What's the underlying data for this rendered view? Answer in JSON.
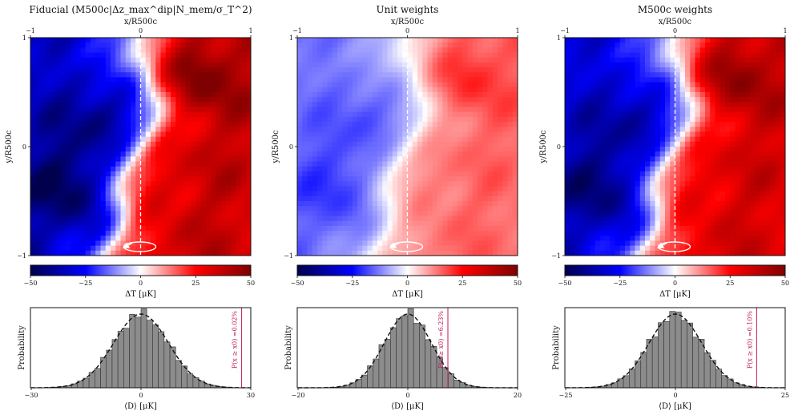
{
  "chart_data": [
    {
      "type": "heatmap",
      "title": "Fiducial (M500c|Δz_max^dip|N_mem/σ_T^2)",
      "xlabel": "x/R500c",
      "ylabel": "y/R500c",
      "xlim": [
        -1,
        1
      ],
      "ylim": [
        -1,
        1
      ],
      "xticks": [
        "−1",
        "0",
        "1"
      ],
      "yticks": [
        "1",
        "0",
        "−1"
      ],
      "colorbar": {
        "label": "ΔT [μK]",
        "range": [
          -50,
          50
        ],
        "ticks": [
          "−50",
          "−25",
          "0",
          "25",
          "50"
        ]
      },
      "amplitude": 1.0,
      "histogram": {
        "xlabel": "⟨D⟩ [μK]",
        "ylabel": "Probability",
        "xlim": [
          -30,
          30
        ],
        "xticks": [
          "−30",
          "0",
          "30"
        ],
        "sigma": 7.5,
        "observed": 27.5,
        "annotation": "P(x ≥ x0) =0.02%"
      }
    },
    {
      "type": "heatmap",
      "title": "Unit weights",
      "xlabel": "x/R500c",
      "ylabel": "y/R500c",
      "xlim": [
        -1,
        1
      ],
      "ylim": [
        -1,
        1
      ],
      "xticks": [
        "−1",
        "0",
        "1"
      ],
      "yticks": [
        "1",
        "0",
        "−1"
      ],
      "colorbar": {
        "label": "ΔT [μK]",
        "range": [
          -50,
          50
        ],
        "ticks": [
          "−50",
          "−25",
          "0",
          "25",
          "50"
        ]
      },
      "amplitude": 0.42,
      "histogram": {
        "xlabel": "⟨D⟩ [μK]",
        "ylabel": "Probability",
        "xlim": [
          -20,
          20
        ],
        "xticks": [
          "−20",
          "0",
          "20"
        ],
        "sigma": 4.3,
        "observed": 7.3,
        "annotation": "P(x ≥ x0) =6.23%"
      }
    },
    {
      "type": "heatmap",
      "title": "M500c weights",
      "xlabel": "x/R500c",
      "ylabel": "y/R500c",
      "xlim": [
        -1,
        1
      ],
      "ylim": [
        -1,
        1
      ],
      "xticks": [
        "−1",
        "0",
        "1"
      ],
      "yticks": [
        "1",
        "0",
        "−1"
      ],
      "colorbar": {
        "label": "ΔT [μK]",
        "range": [
          -50,
          50
        ],
        "ticks": [
          "−50",
          "−25",
          "0",
          "25",
          "50"
        ]
      },
      "amplitude": 0.92,
      "histogram": {
        "xlabel": "⟨D⟩ [μK]",
        "ylabel": "Probability",
        "xlim": [
          -25,
          25
        ],
        "xticks": [
          "−25",
          "0",
          "25"
        ],
        "sigma": 6.0,
        "observed": 18.5,
        "annotation": "P(x ≥ x0) =0.10%"
      }
    }
  ]
}
